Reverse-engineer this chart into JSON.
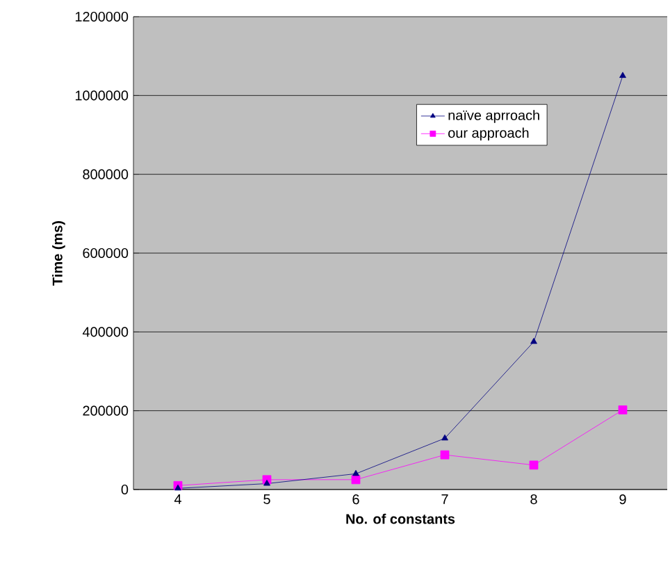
{
  "chart_data": {
    "type": "line",
    "xlabel": "No. of constants",
    "ylabel": "Time (ms)",
    "categories": [
      "4",
      "5",
      "6",
      "7",
      "8",
      "9"
    ],
    "series": [
      {
        "name": "naïve aprroach",
        "color": "#000080",
        "marker": "triangle",
        "values": [
          3000,
          15000,
          40000,
          130000,
          375000,
          1050000
        ]
      },
      {
        "name": "our approach",
        "color": "#ff00ff",
        "marker": "square",
        "values": [
          10000,
          25000,
          25000,
          88000,
          62000,
          202000
        ]
      }
    ],
    "ylim": [
      0,
      1200000
    ],
    "yticks": [
      0,
      200000,
      400000,
      600000,
      800000,
      1000000,
      1200000
    ],
    "grid": "y",
    "legend": "top right"
  }
}
